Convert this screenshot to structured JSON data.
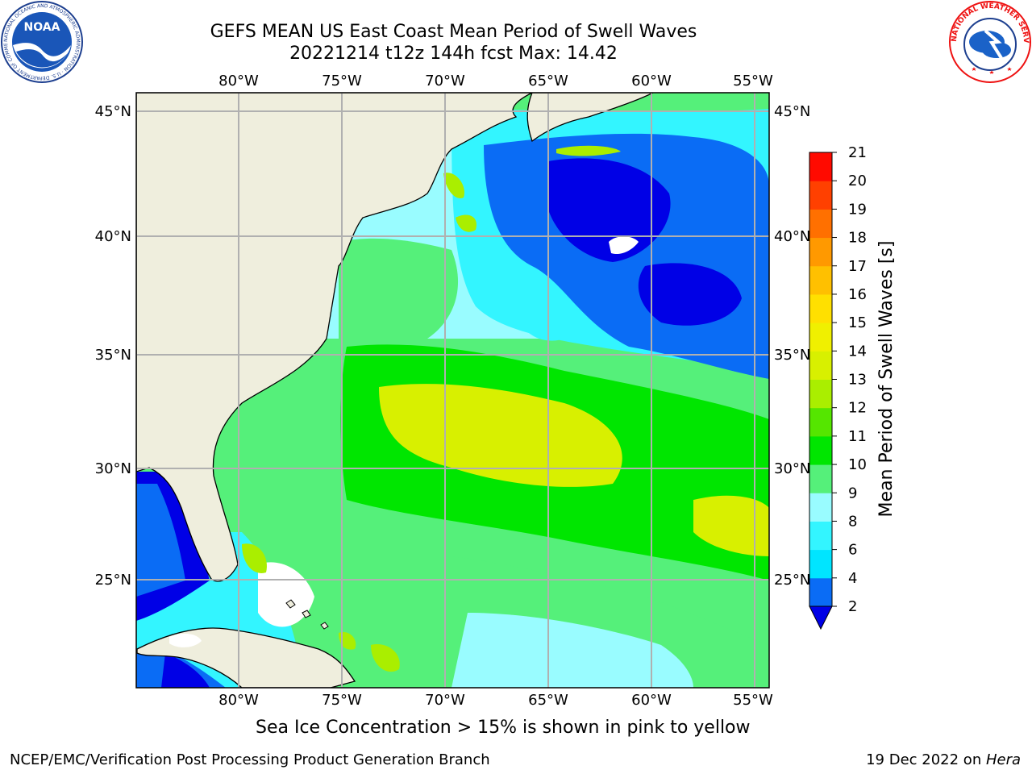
{
  "header": {
    "title_line1": "GEFS MEAN US East Coast Mean Period of Swell Waves",
    "title_line2": "20221214 t12z 144h fcst   Max: 14.42"
  },
  "logos": {
    "noaa_text": "NOAA",
    "noaa_ring_text": "NATIONAL OCEANIC AND ATMOSPHERIC ADMINISTRATION · U.S. DEPARTMENT OF COMMERCE",
    "nws_ring_text": "NATIONAL WEATHER SERVICE"
  },
  "map": {
    "lon_labels": [
      "80°W",
      "75°W",
      "70°W",
      "65°W",
      "60°W",
      "55°W"
    ],
    "lat_labels": [
      "45°N",
      "40°N",
      "35°N",
      "30°N",
      "25°N"
    ],
    "colors": {
      "land": "#efeedd",
      "grid": "#b0b0b0"
    }
  },
  "colorbar": {
    "label": "Mean Period of Swell Waves [s]",
    "ticks": [
      "2",
      "4",
      "6",
      "8",
      "9",
      "10",
      "11",
      "12",
      "13",
      "14",
      "15",
      "16",
      "17",
      "18",
      "19",
      "20",
      "21"
    ],
    "colors": [
      "#0a6cf5",
      "#00e5ff",
      "#33f5ff",
      "#99fcff",
      "#55f07a",
      "#00e600",
      "#55e600",
      "#aaee00",
      "#d8f000",
      "#f0f000",
      "#ffe000",
      "#ffc000",
      "#ff9900",
      "#ff7000",
      "#ff4000",
      "#ff0a00"
    ],
    "under_color": "#0000e6"
  },
  "note": "Sea Ice Concentration > 15% is shown in pink to yellow",
  "footer": {
    "left": "NCEP/EMC/Verification Post Processing Product Generation Branch",
    "right_date": "19 Dec 2022 on ",
    "right_machine": "Hera"
  }
}
